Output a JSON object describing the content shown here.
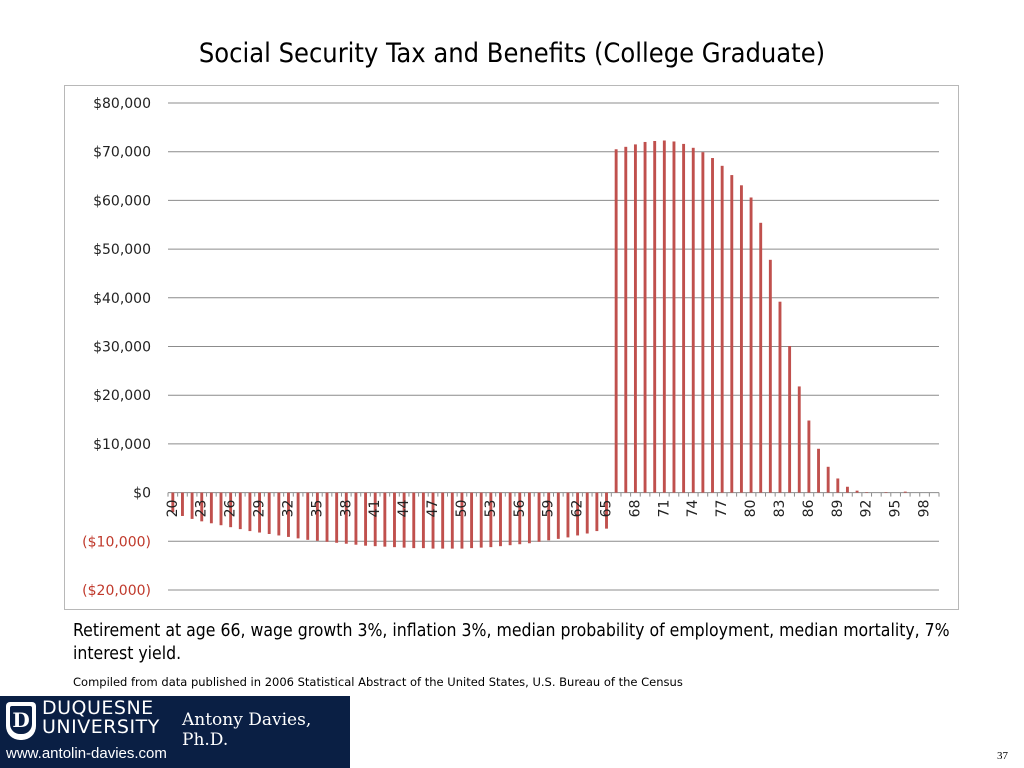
{
  "slide": {
    "title": "Social Security Tax and Benefits (College Graduate)",
    "caption": "Retirement at age 66, wage growth 3%, inflation 3%, median probability of employment, median mortality, 7% interest yield.",
    "source": "Compiled from data published in 2006 Statistical Abstract of the United States, U.S. Bureau of the Census",
    "page_number": "37"
  },
  "footer": {
    "university_line1": "DUQUESNE",
    "university_line2": "UNIVERSITY",
    "author": "Antony Davies, Ph.D.",
    "website": "www.antolin-davies.com",
    "background_color": "#0a1f44"
  },
  "chart_data": {
    "type": "bar",
    "title": "",
    "xlabel": "",
    "ylabel": "",
    "ylim": [
      -20000,
      80000
    ],
    "yticks": [
      80000,
      70000,
      60000,
      50000,
      40000,
      30000,
      20000,
      10000,
      0,
      -10000,
      -20000
    ],
    "ytick_labels": [
      "$80,000",
      "$70,000",
      "$60,000",
      "$50,000",
      "$40,000",
      "$30,000",
      "$20,000",
      "$10,000",
      "$0",
      "($10,000)",
      "($20,000)"
    ],
    "negative_label_color": "#c0392b",
    "bar_color": "#c0504d",
    "grid": true,
    "categories": [
      20,
      21,
      22,
      23,
      24,
      25,
      26,
      27,
      28,
      29,
      30,
      31,
      32,
      33,
      34,
      35,
      36,
      37,
      38,
      39,
      40,
      41,
      42,
      43,
      44,
      45,
      46,
      47,
      48,
      49,
      50,
      51,
      52,
      53,
      54,
      55,
      56,
      57,
      58,
      59,
      60,
      61,
      62,
      63,
      64,
      65,
      66,
      67,
      68,
      69,
      70,
      71,
      72,
      73,
      74,
      75,
      76,
      77,
      78,
      79,
      80,
      81,
      82,
      83,
      84,
      85,
      86,
      87,
      88,
      89,
      90,
      91,
      92,
      93,
      94,
      95,
      96,
      97,
      98,
      99
    ],
    "x_tick_labels": [
      "20",
      "23",
      "26",
      "29",
      "32",
      "35",
      "38",
      "41",
      "44",
      "47",
      "50",
      "53",
      "56",
      "59",
      "62",
      "65",
      "68",
      "71",
      "74",
      "77",
      "80",
      "83",
      "86",
      "89",
      "92",
      "95",
      "98"
    ],
    "values": [
      -4000,
      -4800,
      -5400,
      -5900,
      -6300,
      -6700,
      -7100,
      -7500,
      -7900,
      -8200,
      -8500,
      -8800,
      -9100,
      -9400,
      -9700,
      -9900,
      -10100,
      -10300,
      -10500,
      -10700,
      -10900,
      -11000,
      -11100,
      -11200,
      -11300,
      -11400,
      -11400,
      -11500,
      -11500,
      -11500,
      -11500,
      -11400,
      -11300,
      -11200,
      -11000,
      -10800,
      -10600,
      -10400,
      -10100,
      -9800,
      -9500,
      -9200,
      -8800,
      -8400,
      -7900,
      -7400,
      70500,
      71000,
      71500,
      72000,
      72200,
      72300,
      72100,
      71600,
      70800,
      69900,
      68700,
      67100,
      65200,
      63100,
      60600,
      55400,
      47800,
      39200,
      30100,
      21800,
      14800,
      9000,
      5300,
      2900,
      1200,
      400,
      100,
      0,
      100,
      0,
      200,
      0,
      0,
      0
    ]
  }
}
